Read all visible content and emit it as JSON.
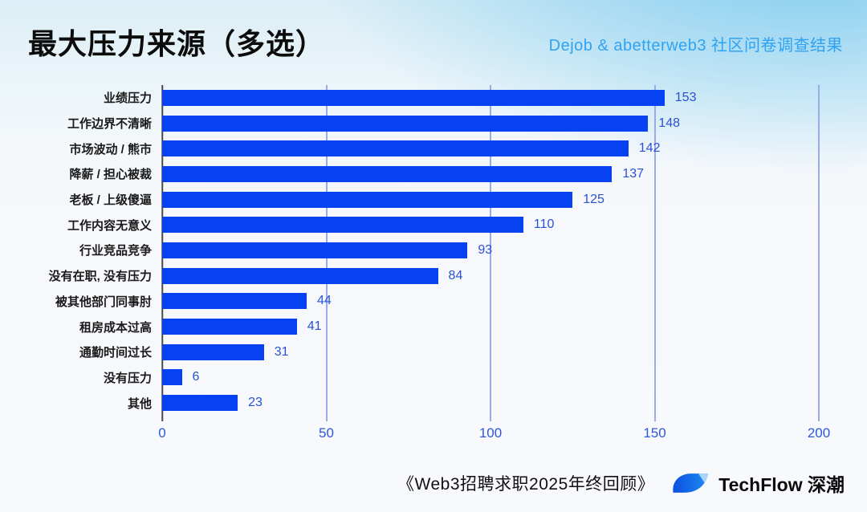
{
  "header": {
    "title": "最大压力来源（多选）",
    "subtitle": "Dejob & abetterweb3 社区问卷调查结果"
  },
  "chart_data": {
    "type": "bar",
    "orientation": "horizontal",
    "title": "最大压力来源（多选）",
    "categories": [
      "业绩压力",
      "工作边界不清晰",
      "市场波动 / 熊市",
      "降薪 / 担心被裁",
      "老板 / 上级傻逼",
      "工作内容无意义",
      "行业竞品竞争",
      "没有在职, 没有压力",
      "被其他部门同事肘",
      "租房成本过高",
      "通勤时间过长",
      "没有压力",
      "其他"
    ],
    "values": [
      153,
      148,
      142,
      137,
      125,
      110,
      93,
      84,
      44,
      41,
      31,
      6,
      23
    ],
    "xlim": [
      0,
      200
    ],
    "x_ticks": [
      0,
      50,
      100,
      150,
      200
    ],
    "grid": true,
    "legend": false,
    "colors": {
      "bar": "#0642F2",
      "value_label": "#2B50D4",
      "axis_tick_label": "#2C57DE",
      "gridline": "#9AABEC",
      "axis_line": "#4A4A4A"
    }
  },
  "footer": {
    "report_title": "《Web3招聘求职2025年终回顾》",
    "brand": "TechFlow 深潮",
    "logo": "techflow-leaf-logo"
  }
}
